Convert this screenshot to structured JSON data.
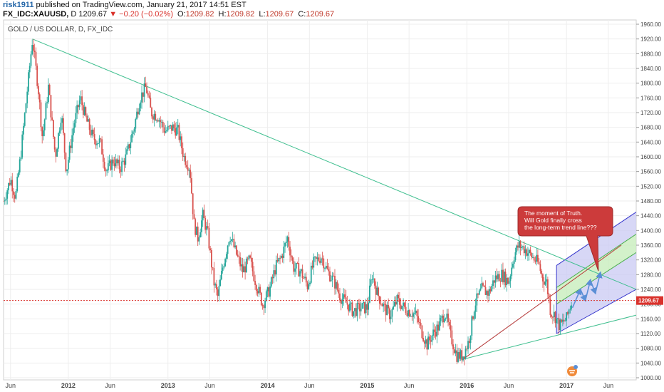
{
  "header": {
    "author": "risk1911",
    "published_text": "published on TradingView.com, January 21, 2017 14:51 EST",
    "symbol": "FX_IDC:XAUUSD,",
    "timeframe": "D",
    "last": "1209.67",
    "change": "▼ −0.20 (−0.02%)",
    "open_label": "O:",
    "open": "1209.82",
    "high_label": "H:",
    "high": "1209.82",
    "low_label": "L:",
    "low": "1209.67",
    "close_label": "C:",
    "close": "1209.67"
  },
  "colors": {
    "up": "#26a69a",
    "down": "#d9534f",
    "trendline": "#3fbf8f",
    "channel_fill": "#c9c9f3",
    "channel_mid": "#c4ecb8",
    "channel_border": "#3535cc",
    "median": "#b53a3a",
    "price_line": "#d9312b",
    "callout": "#cc3b3b",
    "arrow": "#5b8fd6"
  },
  "chart_data": {
    "type": "candlestick",
    "title": "GOLD / US DOLLAR, D, FX_IDC",
    "y_axis_position": "right",
    "ylim": [
      1000,
      1960
    ],
    "yticks": [
      "1960.00",
      "1920.00",
      "1880.00",
      "1840.00",
      "1800.00",
      "1760.00",
      "1720.00",
      "1680.00",
      "1640.00",
      "1600.00",
      "1560.00",
      "1520.00",
      "1480.00",
      "1440.00",
      "1400.00",
      "1360.00",
      "1320.00",
      "1280.00",
      "1240.00",
      "1200.00",
      "1160.00",
      "1120.00",
      "1080.00",
      "1040.00",
      "1000.00"
    ],
    "xticks": [
      {
        "t": 2011.42,
        "label": "Jun",
        "year": false
      },
      {
        "t": 2012.0,
        "label": "2012",
        "year": true
      },
      {
        "t": 2012.42,
        "label": "Jun",
        "year": false
      },
      {
        "t": 2013.0,
        "label": "2013",
        "year": true
      },
      {
        "t": 2013.42,
        "label": "Jun",
        "year": false
      },
      {
        "t": 2014.0,
        "label": "2014",
        "year": true
      },
      {
        "t": 2014.42,
        "label": "Jun",
        "year": false
      },
      {
        "t": 2015.0,
        "label": "2015",
        "year": true
      },
      {
        "t": 2015.42,
        "label": "Jun",
        "year": false
      },
      {
        "t": 2016.0,
        "label": "2016",
        "year": true
      },
      {
        "t": 2016.42,
        "label": "Jun",
        "year": false
      },
      {
        "t": 2017.0,
        "label": "2017",
        "year": true
      },
      {
        "t": 2017.42,
        "label": "Jun",
        "year": false
      }
    ],
    "xlim": [
      2011.35,
      2017.7
    ],
    "last_price": 1209.67,
    "last_price_label": "1209.67",
    "price_path": [
      [
        2011.35,
        1480
      ],
      [
        2011.42,
        1540
      ],
      [
        2011.47,
        1490
      ],
      [
        2011.52,
        1600
      ],
      [
        2011.58,
        1760
      ],
      [
        2011.64,
        1920
      ],
      [
        2011.7,
        1780
      ],
      [
        2011.74,
        1650
      ],
      [
        2011.8,
        1790
      ],
      [
        2011.87,
        1600
      ],
      [
        2011.93,
        1720
      ],
      [
        2011.98,
        1560
      ],
      [
        2012.05,
        1680
      ],
      [
        2012.12,
        1760
      ],
      [
        2012.18,
        1700
      ],
      [
        2012.25,
        1650
      ],
      [
        2012.32,
        1640
      ],
      [
        2012.38,
        1560
      ],
      [
        2012.45,
        1590
      ],
      [
        2012.52,
        1570
      ],
      [
        2012.58,
        1600
      ],
      [
        2012.66,
        1680
      ],
      [
        2012.72,
        1760
      ],
      [
        2012.78,
        1790
      ],
      [
        2012.83,
        1720
      ],
      [
        2012.9,
        1710
      ],
      [
        2012.97,
        1670
      ],
      [
        2013.05,
        1680
      ],
      [
        2013.1,
        1670
      ],
      [
        2013.16,
        1600
      ],
      [
        2013.22,
        1570
      ],
      [
        2013.26,
        1420
      ],
      [
        2013.3,
        1380
      ],
      [
        2013.35,
        1440
      ],
      [
        2013.4,
        1390
      ],
      [
        2013.46,
        1260
      ],
      [
        2013.5,
        1220
      ],
      [
        2013.55,
        1300
      ],
      [
        2013.62,
        1390
      ],
      [
        2013.68,
        1340
      ],
      [
        2013.75,
        1290
      ],
      [
        2013.82,
        1320
      ],
      [
        2013.88,
        1260
      ],
      [
        2013.95,
        1200
      ],
      [
        2014.02,
        1240
      ],
      [
        2014.08,
        1300
      ],
      [
        2014.14,
        1330
      ],
      [
        2014.2,
        1380
      ],
      [
        2014.26,
        1300
      ],
      [
        2014.33,
        1290
      ],
      [
        2014.4,
        1250
      ],
      [
        2014.46,
        1310
      ],
      [
        2014.54,
        1330
      ],
      [
        2014.6,
        1290
      ],
      [
        2014.67,
        1260
      ],
      [
        2014.73,
        1220
      ],
      [
        2014.8,
        1200
      ],
      [
        2014.86,
        1180
      ],
      [
        2014.93,
        1190
      ],
      [
        2015.0,
        1190
      ],
      [
        2015.05,
        1280
      ],
      [
        2015.1,
        1230
      ],
      [
        2015.17,
        1190
      ],
      [
        2015.23,
        1170
      ],
      [
        2015.3,
        1210
      ],
      [
        2015.37,
        1190
      ],
      [
        2015.43,
        1180
      ],
      [
        2015.49,
        1170
      ],
      [
        2015.54,
        1130
      ],
      [
        2015.6,
        1090
      ],
      [
        2015.66,
        1120
      ],
      [
        2015.72,
        1140
      ],
      [
        2015.78,
        1180
      ],
      [
        2015.84,
        1110
      ],
      [
        2015.9,
        1060
      ],
      [
        2015.96,
        1060
      ],
      [
        2016.02,
        1100
      ],
      [
        2016.08,
        1200
      ],
      [
        2016.15,
        1240
      ],
      [
        2016.22,
        1230
      ],
      [
        2016.28,
        1270
      ],
      [
        2016.35,
        1280
      ],
      [
        2016.42,
        1260
      ],
      [
        2016.47,
        1330
      ],
      [
        2016.52,
        1360
      ],
      [
        2016.58,
        1350
      ],
      [
        2016.65,
        1330
      ],
      [
        2016.72,
        1310
      ],
      [
        2016.76,
        1270
      ],
      [
        2016.8,
        1260
      ],
      [
        2016.84,
        1180
      ],
      [
        2016.88,
        1170
      ],
      [
        2016.93,
        1140
      ],
      [
        2016.96,
        1150
      ],
      [
        2017.0,
        1160
      ],
      [
        2017.03,
        1190
      ],
      [
        2017.06,
        1210
      ]
    ],
    "trendline_down": [
      [
        2011.64,
        1920
      ],
      [
        2017.7,
        1240
      ]
    ],
    "trendline_up": [
      [
        2015.96,
        1050
      ],
      [
        2017.7,
        1170
      ]
    ],
    "median_line": [
      [
        2015.96,
        1050
      ],
      [
        2017.55,
        1360
      ]
    ],
    "channel": {
      "start_t": 2016.9,
      "end_t": 2017.7,
      "upper": [
        1305,
        1450
      ],
      "inner_upper": [
        1245,
        1390
      ],
      "inner_lower": [
        1200,
        1340
      ],
      "lower": [
        1120,
        1240
      ]
    },
    "forecast_arrows": [
      [
        2017.06,
        1190
      ],
      [
        2017.14,
        1240
      ],
      [
        2017.19,
        1210
      ],
      [
        2017.24,
        1265
      ],
      [
        2017.29,
        1230
      ],
      [
        2017.34,
        1285
      ]
    ],
    "callout": {
      "lines": [
        "The moment of Truth.",
        "Will Gold finally cross",
        "the long-term trend line???"
      ],
      "anchor": [
        2017.32,
        1290
      ]
    }
  }
}
